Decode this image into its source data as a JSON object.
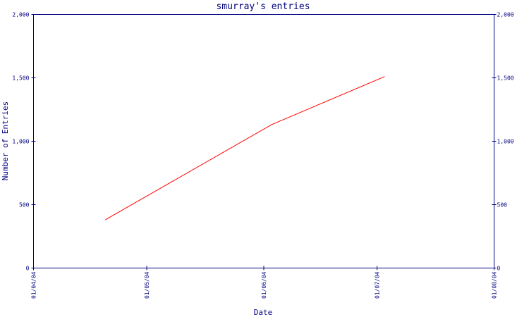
{
  "chart_data": {
    "type": "line",
    "title": "smurray's entries",
    "xlabel": "Date",
    "ylabel": "Number of Entries",
    "x_ticks": [
      "01/04/04",
      "01/05/04",
      "01/06/04",
      "01/07/04",
      "01/08/04"
    ],
    "x_tick_dates": [
      "2004-04-01",
      "2004-05-01",
      "2004-06-01",
      "2004-07-01",
      "2004-08-01"
    ],
    "y_ticks": [
      "0",
      "500",
      "1,000",
      "1,500",
      "2,000"
    ],
    "y_tick_values": [
      0,
      500,
      1000,
      1500,
      2000
    ],
    "xlim": [
      "2004-04-01",
      "2004-08-01"
    ],
    "ylim": [
      0,
      2000
    ],
    "right_axis": true,
    "grid": false,
    "series": [
      {
        "color": "#ff0000",
        "x": [
          "2004-04-20",
          "2004-06-03",
          "2004-07-03"
        ],
        "y": [
          380,
          1130,
          1510
        ]
      }
    ]
  }
}
